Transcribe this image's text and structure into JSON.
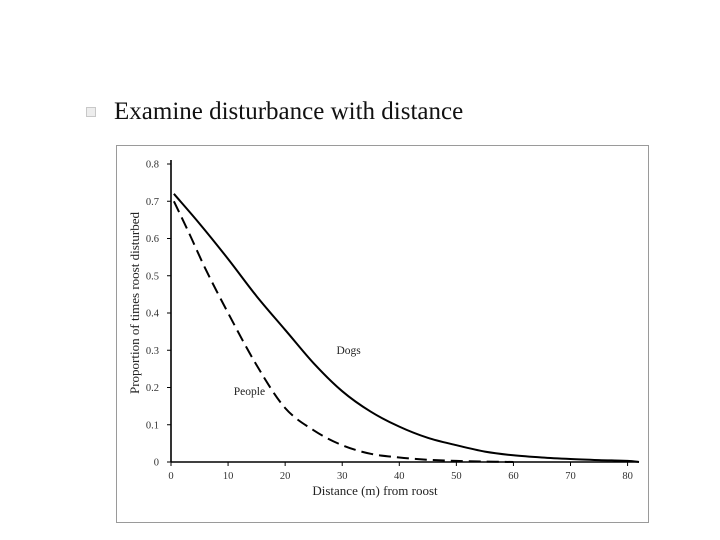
{
  "slide": {
    "bullet_icon": "square-bullet-icon",
    "title": "Examine disturbance with distance"
  },
  "chart_data": {
    "type": "line",
    "xlabel": "Distance (m) from roost",
    "ylabel": "Proportion of times roost disturbed",
    "xlim": [
      0,
      82
    ],
    "ylim": [
      0,
      0.8
    ],
    "x_ticks": [
      0,
      10,
      20,
      30,
      40,
      50,
      60,
      70,
      80
    ],
    "y_ticks": [
      0,
      0.1,
      0.2,
      0.3,
      0.4,
      0.5,
      0.6,
      0.7,
      0.8
    ],
    "x_tick_labels": [
      "0",
      "10",
      "20",
      "30",
      "40",
      "50",
      "60",
      "70",
      "80"
    ],
    "y_tick_labels": [
      "0",
      "0.1",
      "0.2",
      "0.3",
      "0.4",
      "0.5",
      "0.6",
      "0.7",
      "0.8"
    ],
    "grid": false,
    "series": [
      {
        "name": "Dogs",
        "style": "solid",
        "x": [
          0.5,
          5,
          10,
          15,
          20,
          25,
          30,
          35,
          40,
          45,
          50,
          55,
          60,
          65,
          70,
          75,
          80,
          82
        ],
        "y": [
          0.72,
          0.64,
          0.545,
          0.445,
          0.355,
          0.265,
          0.19,
          0.135,
          0.095,
          0.065,
          0.045,
          0.028,
          0.018,
          0.012,
          0.008,
          0.005,
          0.003,
          0.0
        ]
      },
      {
        "name": "People",
        "style": "dashed",
        "x": [
          0.5,
          3,
          6,
          10,
          15,
          20,
          25,
          30,
          35,
          40,
          45,
          50,
          55,
          60
        ],
        "y": [
          0.7,
          0.62,
          0.52,
          0.4,
          0.26,
          0.145,
          0.085,
          0.045,
          0.022,
          0.012,
          0.006,
          0.003,
          0.001,
          0.0
        ]
      }
    ],
    "series_label_positions": [
      {
        "name": "Dogs",
        "x": 29,
        "y": 0.29
      },
      {
        "name": "People",
        "x": 11,
        "y": 0.18
      }
    ]
  }
}
